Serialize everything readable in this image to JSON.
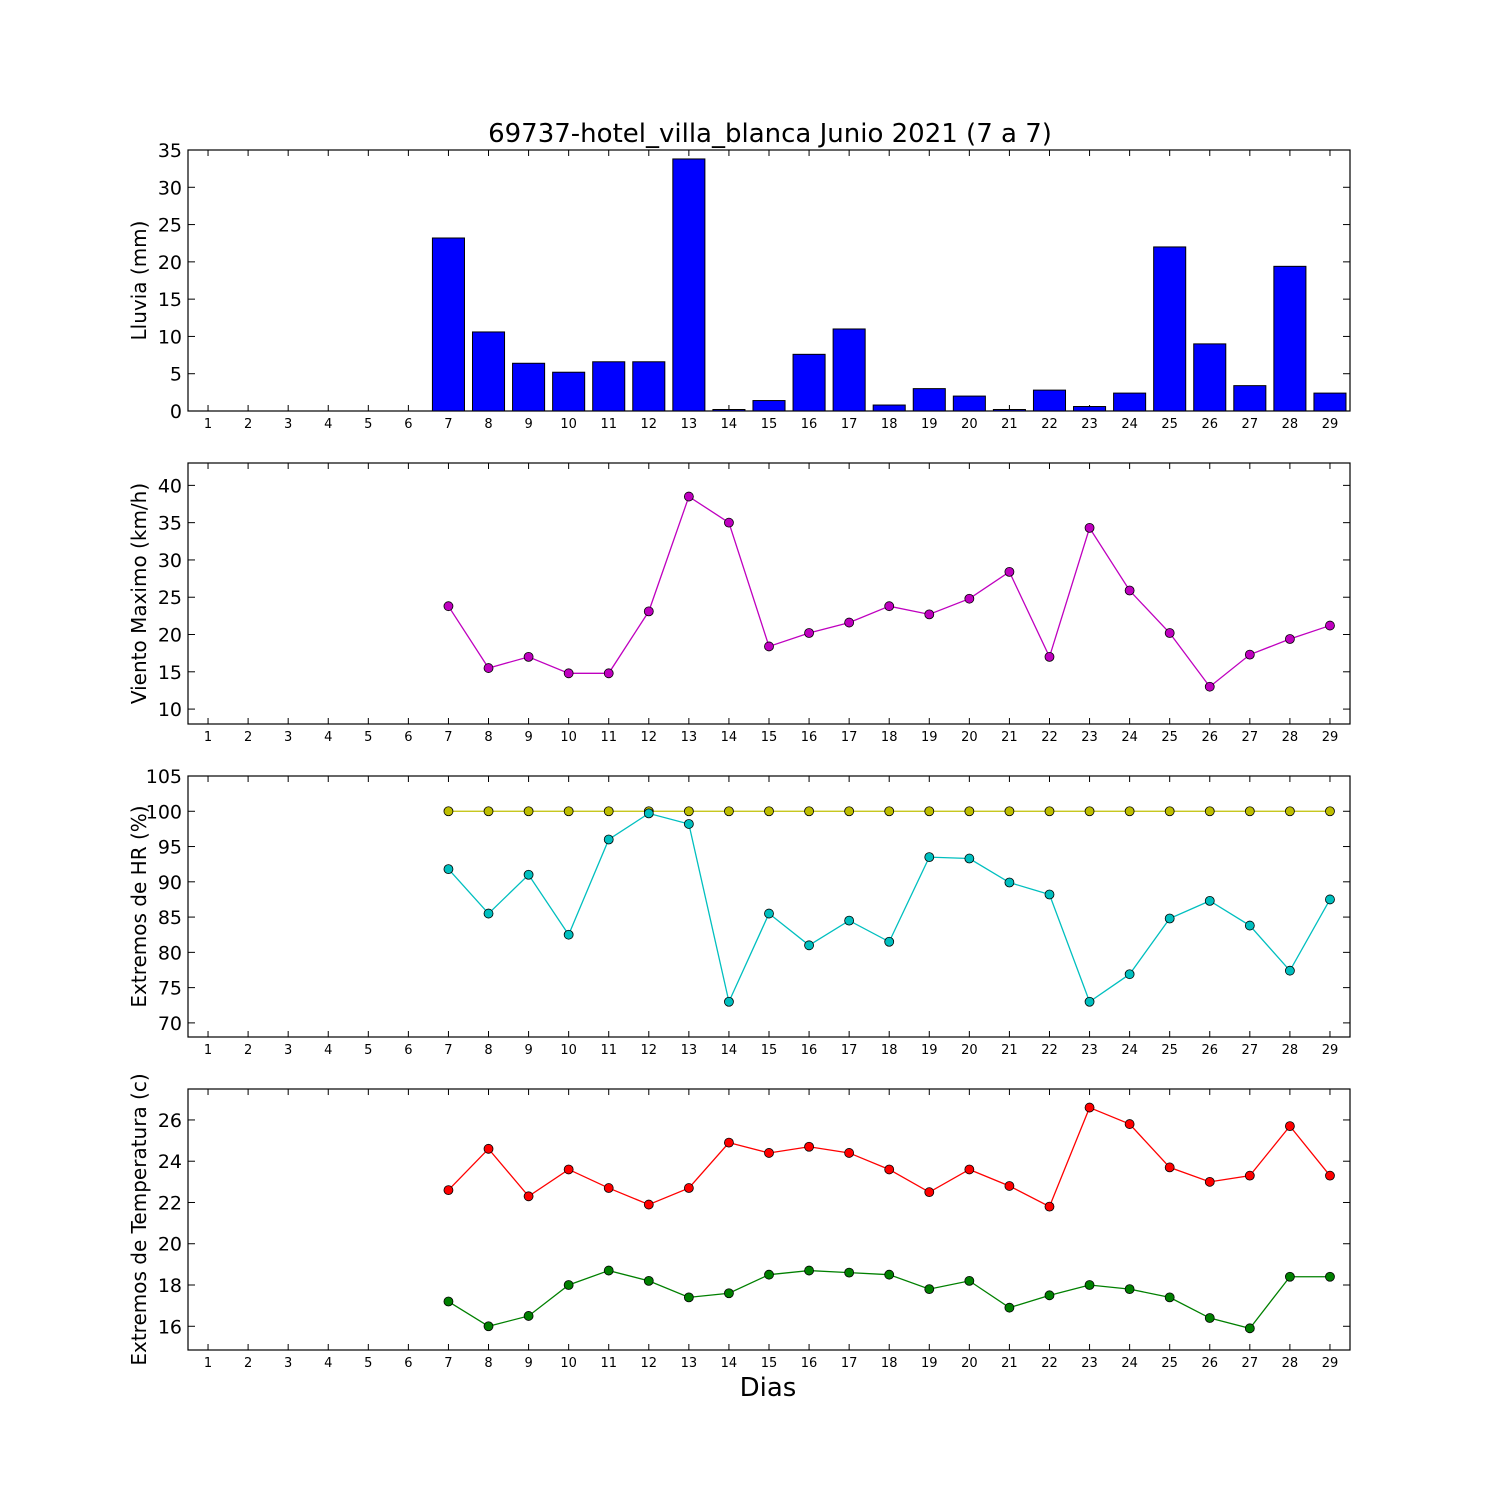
{
  "chart_data": {
    "title": "69737-hotel_villa_blanca Junio 2021  (7 a 7)",
    "xlabel": "Dias",
    "days": [
      1,
      2,
      3,
      4,
      5,
      6,
      7,
      8,
      9,
      10,
      11,
      12,
      13,
      14,
      15,
      16,
      17,
      18,
      19,
      20,
      21,
      22,
      23,
      24,
      25,
      26,
      27,
      28,
      29
    ],
    "panels": [
      {
        "type": "bar",
        "ylabel": "Lluvia (mm)",
        "ylim": [
          0,
          35
        ],
        "yticks": [
          0,
          5,
          10,
          15,
          20,
          25,
          30,
          35
        ],
        "series": [
          {
            "color": "#0000ff",
            "x": [
              7,
              8,
              9,
              10,
              11,
              12,
              13,
              14,
              15,
              16,
              17,
              18,
              19,
              20,
              21,
              22,
              23,
              24,
              25,
              26,
              27,
              28,
              29
            ],
            "values": [
              23.2,
              10.6,
              6.4,
              5.2,
              6.6,
              6.6,
              33.8,
              0.2,
              1.4,
              7.6,
              11.0,
              0.8,
              3.0,
              2.0,
              0.2,
              2.8,
              0.6,
              2.4,
              22.0,
              9.0,
              3.4,
              19.4,
              2.4
            ]
          }
        ]
      },
      {
        "type": "line",
        "ylabel": "Viento Maximo (km/h)",
        "ylim": [
          8,
          43
        ],
        "yticks": [
          10,
          15,
          20,
          25,
          30,
          35,
          40
        ],
        "series": [
          {
            "color": "#bf00bf",
            "x": [
              7,
              8,
              9,
              10,
              11,
              12,
              13,
              14,
              15,
              16,
              17,
              18,
              19,
              20,
              21,
              22,
              23,
              24,
              25,
              26,
              27,
              28,
              29
            ],
            "values": [
              23.8,
              15.5,
              17.0,
              14.8,
              14.8,
              23.1,
              38.5,
              35.0,
              18.4,
              20.2,
              21.6,
              23.8,
              22.7,
              24.8,
              28.4,
              17.0,
              34.3,
              25.9,
              20.2,
              13.0,
              17.3,
              19.4,
              21.2
            ]
          }
        ]
      },
      {
        "type": "line",
        "ylabel": "Extremos de HR (%)",
        "ylim": [
          68,
          105
        ],
        "yticks": [
          70,
          75,
          80,
          85,
          90,
          95,
          100,
          105
        ],
        "series": [
          {
            "color": "#bfbf00",
            "x": [
              7,
              8,
              9,
              10,
              11,
              12,
              13,
              14,
              15,
              16,
              17,
              18,
              19,
              20,
              21,
              22,
              23,
              24,
              25,
              26,
              27,
              28,
              29
            ],
            "values": [
              100,
              100,
              100,
              100,
              100,
              100,
              100,
              100,
              100,
              100,
              100,
              100,
              100,
              100,
              100,
              100,
              100,
              100,
              100,
              100,
              100,
              100,
              100
            ]
          },
          {
            "color": "#00bfbf",
            "x": [
              7,
              8,
              9,
              10,
              11,
              12,
              13,
              14,
              15,
              16,
              17,
              18,
              19,
              20,
              21,
              22,
              23,
              24,
              25,
              26,
              27,
              28,
              29
            ],
            "values": [
              91.8,
              85.5,
              91.0,
              82.5,
              96.0,
              99.7,
              98.2,
              73.0,
              85.5,
              81.0,
              84.5,
              81.5,
              93.5,
              93.3,
              89.9,
              88.2,
              73.0,
              76.9,
              84.8,
              87.3,
              83.8,
              77.4,
              87.5
            ]
          }
        ]
      },
      {
        "type": "line",
        "ylabel": "Extremos de Temperatura (c)",
        "ylim": [
          14.85,
          27.5
        ],
        "yticks": [
          16,
          18,
          20,
          22,
          24,
          26
        ],
        "series": [
          {
            "color": "#ff0000",
            "x": [
              7,
              8,
              9,
              10,
              11,
              12,
              13,
              14,
              15,
              16,
              17,
              18,
              19,
              20,
              21,
              22,
              23,
              24,
              25,
              26,
              27,
              28,
              29
            ],
            "values": [
              22.6,
              24.6,
              22.3,
              23.6,
              22.7,
              21.9,
              22.7,
              24.9,
              24.4,
              24.7,
              24.4,
              23.6,
              22.5,
              23.6,
              22.8,
              21.8,
              26.6,
              25.8,
              23.7,
              23.0,
              23.3,
              25.7,
              23.3
            ]
          },
          {
            "color": "#008000",
            "x": [
              7,
              8,
              9,
              10,
              11,
              12,
              13,
              14,
              15,
              16,
              17,
              18,
              19,
              20,
              21,
              22,
              23,
              24,
              25,
              26,
              27,
              28,
              29
            ],
            "values": [
              17.2,
              16.0,
              16.5,
              18.0,
              18.7,
              18.2,
              17.4,
              17.6,
              18.5,
              18.7,
              18.6,
              18.5,
              17.8,
              18.2,
              16.9,
              17.5,
              18.0,
              17.8,
              17.4,
              16.4,
              15.9,
              18.4,
              18.4
            ]
          }
        ]
      }
    ]
  }
}
